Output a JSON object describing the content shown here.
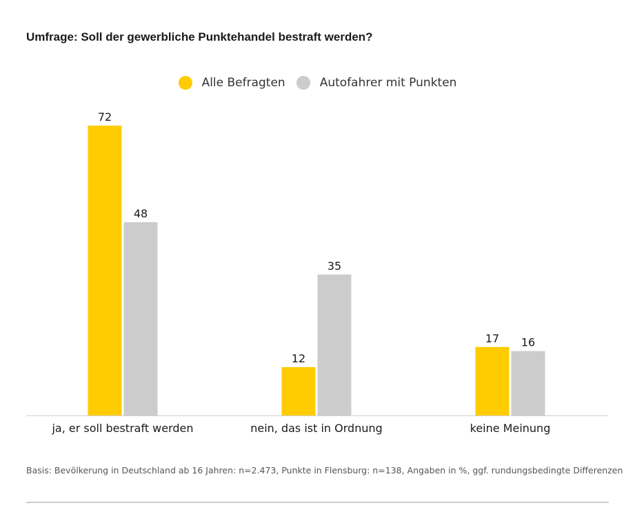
{
  "chart_data": {
    "type": "bar",
    "title": "Umfrage: Soll der gewerbliche Punktehandel bestraft werden?",
    "categories": [
      "ja, er soll bestraft werden",
      "nein, das ist in Ordnung",
      "keine Meinung"
    ],
    "series": [
      {
        "name": "Alle Befragten",
        "color": "#fecc00",
        "values": [
          72,
          12,
          17
        ]
      },
      {
        "name": "Autofahrer mit Punkten",
        "color": "#cccccc",
        "values": [
          48,
          35,
          16
        ]
      }
    ],
    "xlabel": "",
    "ylabel": "",
    "ylim": [
      0,
      72
    ],
    "grid": false,
    "legend_position": "top-center",
    "footnote": "Basis: Bevölkerung in Deutschland ab 16 Jahren: n=2.473, Punkte in Flensburg: n=138, Angaben in %, ggf. rundungsbedingte Differenzen"
  }
}
